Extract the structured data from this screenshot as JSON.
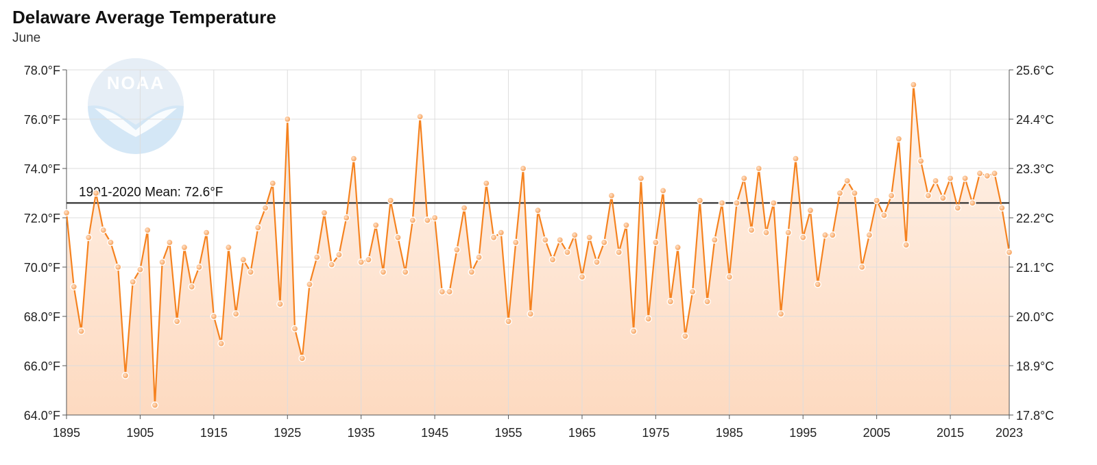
{
  "header": {
    "title": "Delaware Average Temperature",
    "subtitle": "June"
  },
  "logo": {
    "text": "NOAA",
    "color": "#cfe3f3"
  },
  "chart_data": {
    "type": "line",
    "title": "Delaware Average Temperature",
    "subtitle": "June",
    "xlabel": "",
    "ylabel": "",
    "xlim": [
      1895,
      2023
    ],
    "ylim": [
      64,
      78
    ],
    "grid": true,
    "x_ticks": [
      1895,
      1905,
      1915,
      1925,
      1935,
      1945,
      1955,
      1965,
      1975,
      1985,
      1995,
      2005,
      2015,
      2023
    ],
    "y_ticks_left": [
      {
        "value": 64,
        "label": "64.0°F"
      },
      {
        "value": 66,
        "label": "66.0°F"
      },
      {
        "value": 68,
        "label": "68.0°F"
      },
      {
        "value": 70,
        "label": "70.0°F"
      },
      {
        "value": 72,
        "label": "72.0°F"
      },
      {
        "value": 74,
        "label": "74.0°F"
      },
      {
        "value": 76,
        "label": "76.0°F"
      },
      {
        "value": 78,
        "label": "78.0°F"
      }
    ],
    "y_ticks_right": [
      {
        "value": 64,
        "label": "17.8°C"
      },
      {
        "value": 66,
        "label": "18.9°C"
      },
      {
        "value": 68,
        "label": "20.0°C"
      },
      {
        "value": 70,
        "label": "21.1°C"
      },
      {
        "value": 72,
        "label": "22.2°C"
      },
      {
        "value": 74,
        "label": "23.3°C"
      },
      {
        "value": 76,
        "label": "24.4°C"
      },
      {
        "value": 78,
        "label": "25.6°C"
      }
    ],
    "mean": {
      "value": 72.6,
      "label": "1991-2020 Mean: 72.6°F"
    },
    "colors": {
      "line": "#f5821f",
      "fill_top": "#fde3cf",
      "fill_bottom": "#fdd5b8",
      "mean": "#333333",
      "grid": "#dddddd"
    },
    "series": [
      {
        "x_start": 1895,
        "values": [
          72.2,
          69.2,
          67.4,
          71.2,
          73.0,
          71.5,
          71.0,
          70.0,
          65.6,
          69.4,
          69.9,
          71.5,
          64.4,
          70.2,
          71.0,
          67.8,
          70.8,
          69.2,
          70.0,
          71.4,
          68.0,
          66.9,
          70.8,
          68.1,
          70.3,
          69.8,
          71.6,
          72.4,
          73.4,
          68.5,
          76.0,
          67.5,
          66.3,
          69.3,
          70.4,
          72.2,
          70.1,
          70.5,
          72.0,
          74.4,
          70.2,
          70.3,
          71.7,
          69.8,
          72.7,
          71.2,
          69.8,
          71.9,
          76.1,
          71.9,
          72.0,
          69.0,
          69.0,
          70.7,
          72.4,
          69.8,
          70.4,
          73.4,
          71.2,
          71.4,
          67.8,
          71.0,
          74.0,
          68.1,
          72.3,
          71.1,
          70.3,
          71.1,
          70.6,
          71.3,
          69.6,
          71.2,
          70.2,
          71.0,
          72.9,
          70.6,
          71.7,
          67.4,
          73.6,
          67.9,
          71.0,
          73.1,
          68.6,
          70.8,
          67.2,
          69.0,
          72.7,
          68.6,
          71.1,
          72.6,
          69.6,
          72.6,
          73.6,
          71.5,
          74.0,
          71.4,
          72.6,
          68.1,
          71.4,
          74.4,
          71.2,
          72.3,
          69.3,
          71.3,
          71.3,
          73.0,
          73.5,
          73.0,
          70.0,
          71.3,
          72.7,
          72.1,
          72.9,
          75.2,
          70.9,
          77.4,
          74.3,
          72.9,
          73.5,
          72.8,
          73.6,
          72.4,
          73.6,
          72.6,
          73.8,
          73.7,
          73.8,
          72.4,
          70.6
        ]
      }
    ]
  }
}
